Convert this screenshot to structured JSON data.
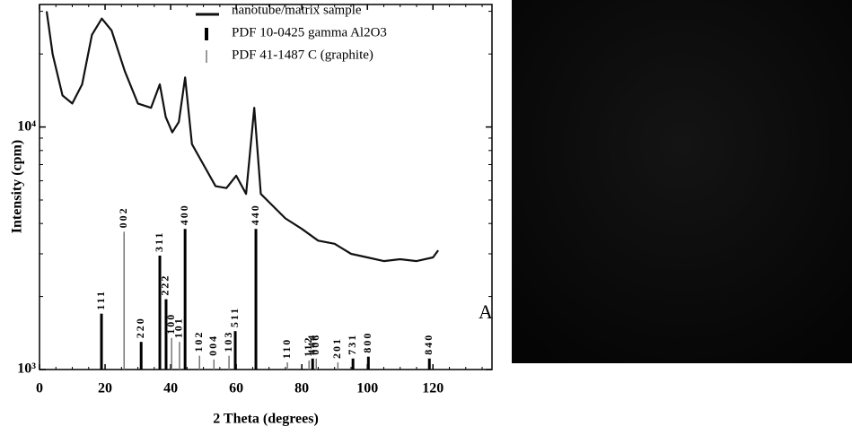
{
  "chart_data": {
    "type": "xrd",
    "x_label": "2 Theta (degrees)",
    "y_label": "Intensity (cpm)",
    "annotation": "A",
    "log_y": true,
    "legend": "top",
    "xlim": [
      0,
      138
    ],
    "xticks": [
      0,
      20,
      40,
      60,
      80,
      100,
      120
    ],
    "xminorticks": [
      5,
      10,
      15,
      25,
      30,
      35,
      45,
      50,
      55,
      65,
      70,
      75,
      85,
      90,
      95,
      105,
      110,
      115,
      125,
      130,
      135
    ],
    "ylim": [
      1000,
      32000
    ],
    "yticks": [
      {
        "value": 1000,
        "label": "10³"
      },
      {
        "value": 10000,
        "label": "10⁴"
      }
    ],
    "yminorticks": [
      2000,
      3000,
      4000,
      5000,
      6000,
      7000,
      8000,
      9000,
      20000,
      30000
    ],
    "series": [
      {
        "name": "nanotube/matrix sample",
        "kind": "line",
        "color": "#111111",
        "x": [
          2.2,
          4,
          7,
          10,
          13,
          16,
          19,
          22,
          26,
          30,
          34,
          36.7,
          38.5,
          40.5,
          42.5,
          44.4,
          46.5,
          50,
          53.7,
          57,
          60,
          63,
          65.5,
          67.5,
          70,
          75,
          80,
          85,
          90,
          95,
          100,
          105,
          110,
          115,
          120,
          121.6
        ],
        "values": [
          30000,
          20000,
          13500,
          12500,
          15000,
          24000,
          28000,
          25000,
          17000,
          12500,
          12000,
          15000,
          11000,
          9500,
          10500,
          16000,
          8500,
          7000,
          5700,
          5600,
          6300,
          5300,
          12000,
          5300,
          4900,
          4200,
          3800,
          3400,
          3300,
          3000,
          2900,
          2800,
          2850,
          2800,
          2900,
          3100
        ]
      },
      {
        "name": "PDF 10-0425 gamma Al2O3",
        "kind": "stick",
        "color": "#000000",
        "x": [
          18.9,
          31.0,
          36.7,
          38.6,
          44.4,
          59.7,
          66.0,
          83.3,
          95.6,
          100.3,
          118.9
        ],
        "values": [
          1700,
          1300,
          2950,
          1950,
          3800,
          1440,
          3800,
          1110,
          1110,
          1130,
          1110
        ],
        "labels": [
          "111",
          "220",
          "311",
          "222",
          "400",
          "511",
          "440",
          "444",
          "731",
          "800",
          "840"
        ]
      },
      {
        "name": "PDF 41-1487 C (graphite)",
        "kind": "stick",
        "color": "#777777",
        "x": [
          25.8,
          40.3,
          42.7,
          48.8,
          53.2,
          57.8,
          75.6,
          82.2,
          84.4,
          91.0
        ],
        "values": [
          3700,
          1350,
          1300,
          1140,
          1100,
          1140,
          1070,
          1090,
          1110,
          1070
        ],
        "labels": [
          "002",
          "100",
          "101",
          "102",
          "004",
          "103",
          "110",
          "112",
          "006",
          "201"
        ]
      }
    ]
  }
}
